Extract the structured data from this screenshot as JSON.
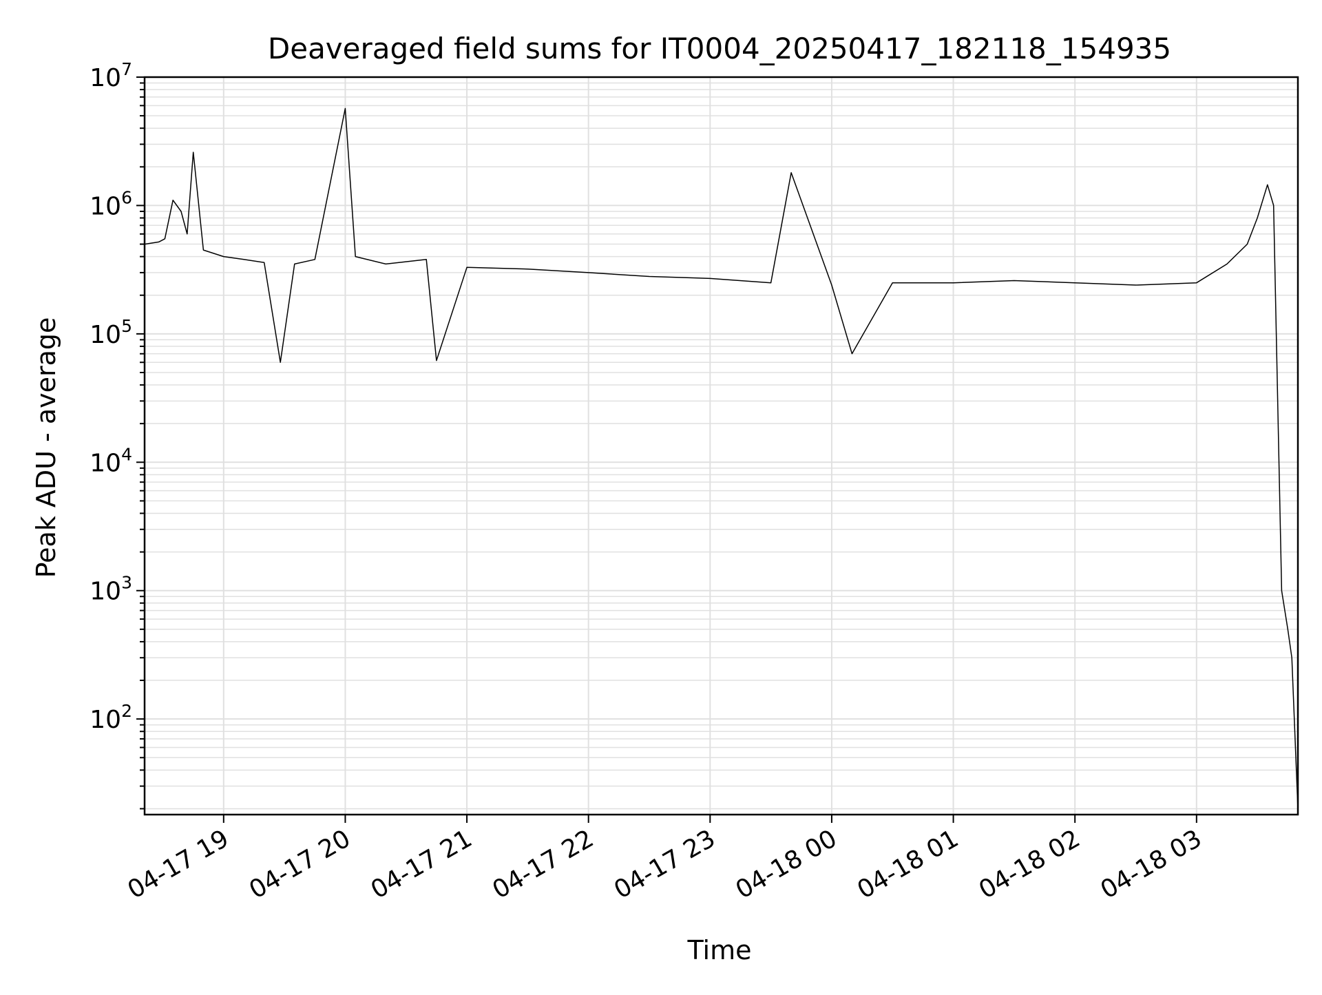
{
  "chart_data": {
    "type": "line",
    "title": "Deaveraged field sums for IT0004_20250417_182118_154935",
    "xlabel": "Time",
    "ylabel": "Peak ADU - average",
    "x_axis_type": "datetime",
    "xlim": [
      "2025-04-17 18:21",
      "2025-04-18 03:50"
    ],
    "x_ticks": [
      {
        "time": "2025-04-17 19:00",
        "label": "04-17 19"
      },
      {
        "time": "2025-04-17 20:00",
        "label": "04-17 20"
      },
      {
        "time": "2025-04-17 21:00",
        "label": "04-17 21"
      },
      {
        "time": "2025-04-17 22:00",
        "label": "04-17 22"
      },
      {
        "time": "2025-04-17 23:00",
        "label": "04-17 23"
      },
      {
        "time": "2025-04-18 00:00",
        "label": "04-18 00"
      },
      {
        "time": "2025-04-18 01:00",
        "label": "04-18 01"
      },
      {
        "time": "2025-04-18 02:00",
        "label": "04-18 02"
      },
      {
        "time": "2025-04-18 03:00",
        "label": "04-18 03"
      }
    ],
    "y_scale": "log",
    "ylim": [
      18,
      10000000
    ],
    "y_ticks": [
      {
        "value": 100,
        "base": "10",
        "exp": "2"
      },
      {
        "value": 1000,
        "base": "10",
        "exp": "3"
      },
      {
        "value": 10000,
        "base": "10",
        "exp": "4"
      },
      {
        "value": 100000,
        "base": "10",
        "exp": "5"
      },
      {
        "value": 1000000,
        "base": "10",
        "exp": "6"
      },
      {
        "value": 10000000,
        "base": "10",
        "exp": "7"
      }
    ],
    "grid": true,
    "legend": "none",
    "line_color": "#000000",
    "grid_color": "#e0e0e0",
    "series": [
      {
        "points": [
          [
            "2025-04-17 18:21",
            500000
          ],
          [
            "2025-04-17 18:28",
            520000
          ],
          [
            "2025-04-17 18:31",
            550000
          ],
          [
            "2025-04-17 18:35",
            1100000
          ],
          [
            "2025-04-17 18:39",
            900000
          ],
          [
            "2025-04-17 18:42",
            600000
          ],
          [
            "2025-04-17 18:45",
            2600000
          ],
          [
            "2025-04-17 18:50",
            450000
          ],
          [
            "2025-04-17 19:00",
            400000
          ],
          [
            "2025-04-17 19:10",
            380000
          ],
          [
            "2025-04-17 19:20",
            360000
          ],
          [
            "2025-04-17 19:28",
            60000
          ],
          [
            "2025-04-17 19:35",
            350000
          ],
          [
            "2025-04-17 19:45",
            380000
          ],
          [
            "2025-04-17 20:00",
            5700000
          ],
          [
            "2025-04-17 20:05",
            400000
          ],
          [
            "2025-04-17 20:20",
            350000
          ],
          [
            "2025-04-17 20:40",
            380000
          ],
          [
            "2025-04-17 20:45",
            62000
          ],
          [
            "2025-04-17 21:00",
            330000
          ],
          [
            "2025-04-17 21:30",
            320000
          ],
          [
            "2025-04-17 22:00",
            300000
          ],
          [
            "2025-04-17 22:30",
            280000
          ],
          [
            "2025-04-17 23:00",
            270000
          ],
          [
            "2025-04-17 23:30",
            250000
          ],
          [
            "2025-04-17 23:40",
            1800000
          ],
          [
            "2025-04-18 00:00",
            240000
          ],
          [
            "2025-04-18 00:10",
            70000
          ],
          [
            "2025-04-18 00:30",
            250000
          ],
          [
            "2025-04-18 01:00",
            250000
          ],
          [
            "2025-04-18 01:30",
            260000
          ],
          [
            "2025-04-18 02:00",
            250000
          ],
          [
            "2025-04-18 02:30",
            240000
          ],
          [
            "2025-04-18 03:00",
            250000
          ],
          [
            "2025-04-18 03:15",
            350000
          ],
          [
            "2025-04-18 03:25",
            500000
          ],
          [
            "2025-04-18 03:30",
            800000
          ],
          [
            "2025-04-18 03:35",
            1450000
          ],
          [
            "2025-04-18 03:38",
            1000000
          ],
          [
            "2025-04-18 03:42",
            1000
          ],
          [
            "2025-04-18 03:45",
            500
          ],
          [
            "2025-04-18 03:47",
            300
          ],
          [
            "2025-04-18 03:50",
            20
          ]
        ]
      }
    ]
  }
}
